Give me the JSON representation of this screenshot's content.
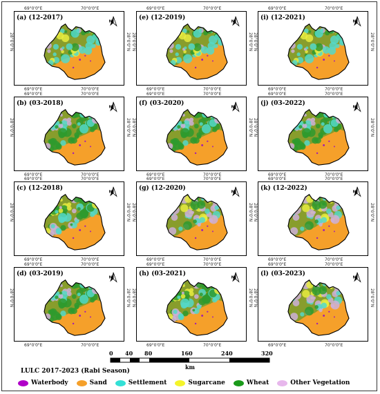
{
  "panels": [
    {
      "label": "(a) (12-2017)",
      "lon1": "69°0'0\"E",
      "lon2": "70°0'0\"E",
      "lat": "28°0'0\"N",
      "style": "cyan"
    },
    {
      "label": "(e) (12-2019)",
      "lon1": "69°0'0\"E",
      "lon2": "70°0'0\"E",
      "lat": "28°0'0\"N",
      "style": "cyan"
    },
    {
      "label": "(i) (12-2021)",
      "lon1": "69°0'0\"E",
      "lon2": "70°0'0\"E",
      "lat": "28°0'0\"N",
      "style": "cyan"
    },
    {
      "label": "(b) (03-2018)",
      "lon1": "69°0'0\"E",
      "lon2": "70°0'0\"E",
      "lat": "28°0'0\"N",
      "style": "green"
    },
    {
      "label": "(f) (03-2020)",
      "lon1": "69°0'0\"E",
      "lon2": "70°0'0\"E",
      "lat": "28°0'0\"N",
      "style": "green"
    },
    {
      "label": "(j) (03-2022)",
      "lon1": "69°0'0\"E",
      "lon2": "70°0'0\"E",
      "lat": "28°0'0\"N",
      "style": "green"
    },
    {
      "label": "(c) (12-2018)",
      "lon1": "69°0'0\"E",
      "lon2": "70°0'0\"E",
      "lat": "28°0'0\"N",
      "style": "mixed"
    },
    {
      "label": "(g) (12-2020)",
      "lon1": "69°0'0\"E",
      "lon2": "70°0'0\"E",
      "lat": "28°0'0\"N",
      "style": "violet"
    },
    {
      "label": "(k) (12-2022)",
      "lon1": "69°0'0\"E",
      "lon2": "70°0'0\"E",
      "lat": "28°0'0\"N",
      "style": "violet"
    },
    {
      "label": "(d) (03-2019)",
      "lon1": "69°0'0\"E",
      "lon2": "70°0'0\"E",
      "lat": "28°0'0\"N",
      "style": "green"
    },
    {
      "label": "(h) (03-2021)",
      "lon1": "69°0'0\"E",
      "lon2": "70°0'0\"E",
      "lat": "28°0'0\"N",
      "style": "mixed"
    },
    {
      "label": "(l) (03-2023)",
      "lon1": "69°0'0\"E",
      "lon2": "70°0'0\"E",
      "lat": "28°0'0\"N",
      "style": "violet"
    }
  ],
  "north_label": "N",
  "scale": {
    "ticks": [
      "0",
      "40",
      "80",
      "160",
      "240",
      "320"
    ],
    "unit": "km"
  },
  "title": "LULC 2017-2023 (Rabi Season)",
  "legend": [
    {
      "name": "Waterbody",
      "color": "#b000c8"
    },
    {
      "name": "Sand",
      "color": "#f5a02a"
    },
    {
      "name": "Settlement",
      "color": "#33e0d6"
    },
    {
      "name": "Sugarcane",
      "color": "#f4f42a"
    },
    {
      "name": "Wheat",
      "color": "#1a9a1a"
    },
    {
      "name": "Other Vegetation",
      "color": "#e7b7ec"
    }
  ],
  "colors": {
    "sand": "#f5a02a",
    "settlement": "#55d8c8",
    "wheat": "#2e9a2e",
    "other": "#cdb0d8",
    "sugarcane": "#e8ec40",
    "water": "#a020b0"
  }
}
